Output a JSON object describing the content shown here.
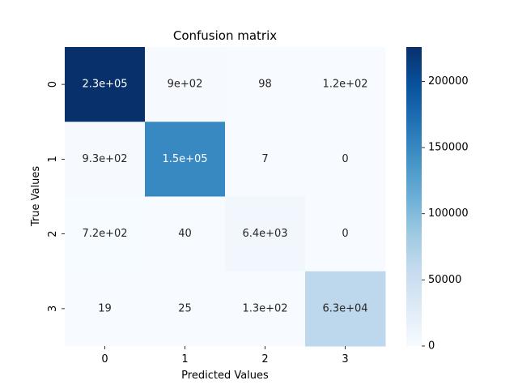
{
  "chart_data": {
    "type": "heatmap",
    "title": "Confusion matrix",
    "xlabel": "Predicted Values",
    "ylabel": "True Values",
    "x_categories": [
      "0",
      "1",
      "2",
      "3"
    ],
    "y_categories": [
      "0",
      "1",
      "2",
      "3"
    ],
    "values": [
      [
        230000,
        900,
        98,
        120
      ],
      [
        930,
        150000,
        7,
        0
      ],
      [
        720,
        40,
        6400,
        0
      ],
      [
        19,
        25,
        130,
        63000
      ]
    ],
    "annotations": [
      [
        "2.3e+05",
        "9e+02",
        "98",
        "1.2e+02"
      ],
      [
        "9.3e+02",
        "1.5e+05",
        "7",
        "0"
      ],
      [
        "7.2e+02",
        "40",
        "6.4e+03",
        "0"
      ],
      [
        "19",
        "25",
        "1.3e+02",
        "6.3e+04"
      ]
    ],
    "colormap": "Blues",
    "colorbar": {
      "min": 0,
      "max": 226000,
      "ticks": [
        0,
        50000,
        100000,
        150000,
        200000
      ],
      "tick_labels": [
        "0",
        "50000",
        "100000",
        "150000",
        "200000"
      ]
    },
    "grid": false,
    "legend": "none"
  }
}
